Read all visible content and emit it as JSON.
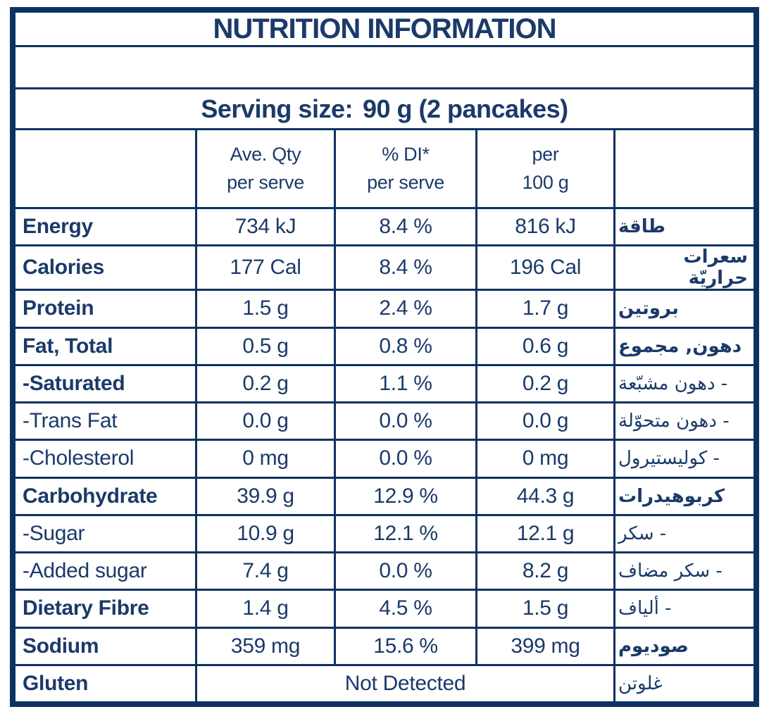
{
  "title": "NUTRITION INFORMATION",
  "serving": {
    "label": "Serving size:",
    "value": "90 g (2 pancakes)"
  },
  "header": {
    "cols": [
      {
        "line1": "Ave. Qty",
        "line2": "per serve"
      },
      {
        "line1": "% DI*",
        "line2": "per serve"
      },
      {
        "line1": "per",
        "line2": "100 g"
      }
    ]
  },
  "rows": [
    {
      "label": "Energy",
      "label_bold": true,
      "ave": "734 kJ",
      "di": "8.4 %",
      "per100": "816 kJ",
      "ar": "طاقة",
      "ar_bold": true
    },
    {
      "label": "Calories",
      "label_bold": true,
      "ave": "177 Cal",
      "di": "8.4 %",
      "per100": "196 Cal",
      "ar": "سعرات حراريّة",
      "ar_bold": true
    },
    {
      "label": "Protein",
      "label_bold": true,
      "ave": "1.5 g",
      "di": "2.4 %",
      "per100": "1.7 g",
      "ar": "بروتين",
      "ar_bold": true
    },
    {
      "label": "Fat, Total",
      "label_bold": true,
      "ave": "0.5 g",
      "di": "0.8 %",
      "per100": "0.6 g",
      "ar": "دهون, مجموع",
      "ar_bold": true
    },
    {
      "label": "-Saturated",
      "label_bold": true,
      "ave": "0.2 g",
      "di": "1.1 %",
      "per100": "0.2 g",
      "ar": "- دهون مشبّعة",
      "ar_bold": false
    },
    {
      "label": "-Trans Fat",
      "label_bold": false,
      "ave": "0.0 g",
      "di": "0.0 %",
      "per100": "0.0 g",
      "ar": "- دهون متحوّلة",
      "ar_bold": false
    },
    {
      "label": "-Cholesterol",
      "label_bold": false,
      "ave": "0 mg",
      "di": "0.0 %",
      "per100": "0 mg",
      "ar": "- كوليستيرول",
      "ar_bold": false
    },
    {
      "label": "Carbohydrate",
      "label_bold": true,
      "ave": "39.9 g",
      "di": "12.9 %",
      "per100": "44.3 g",
      "ar": "كربوهيدرات",
      "ar_bold": true
    },
    {
      "label": "-Sugar",
      "label_bold": false,
      "ave": "10.9 g",
      "di": "12.1 %",
      "per100": "12.1 g",
      "ar": "- سكر",
      "ar_bold": false
    },
    {
      "label": "-Added sugar",
      "label_bold": false,
      "ave": "7.4 g",
      "di": "0.0 %",
      "per100": "8.2 g",
      "ar": "- سكر مضاف",
      "ar_bold": false
    },
    {
      "label": "Dietary Fibre",
      "label_bold": true,
      "ave": "1.4 g",
      "di": "4.5 %",
      "per100": "1.5 g",
      "ar": "- ألياف",
      "ar_bold": false
    },
    {
      "label": "Sodium",
      "label_bold": true,
      "ave": "359 mg",
      "di": "15.6 %",
      "per100": "399 mg",
      "ar": "صوديوم",
      "ar_bold": true
    },
    {
      "label": "Gluten",
      "label_bold": true,
      "span": "Not Detected",
      "ar": "غلوتن",
      "ar_bold": false
    }
  ],
  "colors": {
    "text": "#1B3A69",
    "border": "#0C3262",
    "background": "#FFFFFF"
  }
}
